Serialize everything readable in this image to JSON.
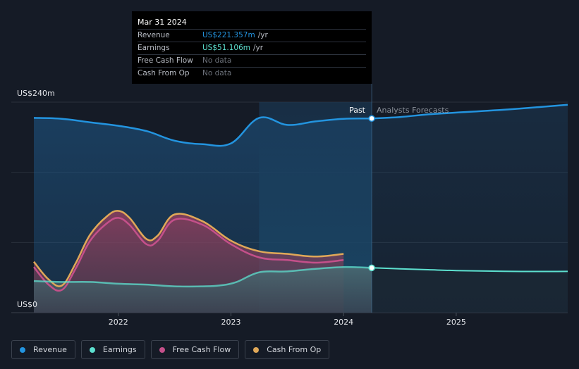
{
  "tooltip": {
    "date": "Mar 31 2024",
    "rows": [
      {
        "label": "Revenue",
        "value": "US$221.357m",
        "unit": "/yr",
        "color": "#2394df"
      },
      {
        "label": "Earnings",
        "value": "US$51.106m",
        "unit": "/yr",
        "color": "#5de0cf"
      },
      {
        "label": "Free Cash Flow",
        "value": "No data",
        "unit": "",
        "color": "#6b7079"
      },
      {
        "label": "Cash From Op",
        "value": "No data",
        "unit": "",
        "color": "#6b7079"
      }
    ]
  },
  "legend": [
    {
      "label": "Revenue",
      "color": "#2394df"
    },
    {
      "label": "Earnings",
      "color": "#5de0cf"
    },
    {
      "label": "Free Cash Flow",
      "color": "#c4508a"
    },
    {
      "label": "Cash From Op",
      "color": "#e0a858"
    }
  ],
  "chart_data": {
    "type": "area",
    "y_top_label": "US$240m",
    "y_bottom_label": "US$0",
    "ylim": [
      0,
      240
    ],
    "xlim": [
      2021.25,
      2025.99
    ],
    "x_ticks": [
      2022,
      2023,
      2024,
      2025
    ],
    "past_label": "Past",
    "forecast_label": "Analysts Forecasts",
    "forecast_start": 2024.25,
    "highlight_range": [
      2023.25,
      2024.25
    ],
    "series": [
      {
        "name": "Revenue",
        "color": "#2394df",
        "past": [
          [
            2021.25,
            222
          ],
          [
            2021.5,
            221
          ],
          [
            2021.75,
            217
          ],
          [
            2022.0,
            213
          ],
          [
            2022.25,
            207
          ],
          [
            2022.5,
            196
          ],
          [
            2022.75,
            192
          ],
          [
            2023.0,
            193
          ],
          [
            2023.25,
            222
          ],
          [
            2023.5,
            214
          ],
          [
            2023.75,
            218
          ],
          [
            2024.0,
            221
          ],
          [
            2024.25,
            221.357
          ]
        ],
        "forecast": [
          [
            2024.25,
            221.357
          ],
          [
            2024.5,
            223
          ],
          [
            2024.75,
            226
          ],
          [
            2025.0,
            228
          ],
          [
            2025.5,
            232
          ],
          [
            2025.99,
            237
          ]
        ]
      },
      {
        "name": "Earnings",
        "color": "#5de0cf",
        "past": [
          [
            2021.25,
            36
          ],
          [
            2021.5,
            35
          ],
          [
            2021.75,
            35
          ],
          [
            2022.0,
            33
          ],
          [
            2022.25,
            32
          ],
          [
            2022.5,
            30
          ],
          [
            2022.75,
            30
          ],
          [
            2022.9,
            31
          ],
          [
            2023.05,
            35
          ],
          [
            2023.25,
            46
          ],
          [
            2023.5,
            47
          ],
          [
            2023.75,
            50
          ],
          [
            2024.0,
            52
          ],
          [
            2024.25,
            51.106
          ]
        ],
        "forecast": [
          [
            2024.25,
            51.106
          ],
          [
            2024.5,
            50
          ],
          [
            2024.75,
            49
          ],
          [
            2025.0,
            48
          ],
          [
            2025.5,
            47
          ],
          [
            2025.99,
            47
          ]
        ]
      },
      {
        "name": "Free Cash Flow",
        "color": "#c4508a",
        "past": [
          [
            2021.25,
            52
          ],
          [
            2021.38,
            32
          ],
          [
            2021.5,
            26
          ],
          [
            2021.62,
            50
          ],
          [
            2021.75,
            82
          ],
          [
            2021.9,
            102
          ],
          [
            2022.0,
            108
          ],
          [
            2022.1,
            100
          ],
          [
            2022.25,
            78
          ],
          [
            2022.35,
            82
          ],
          [
            2022.5,
            106
          ],
          [
            2022.75,
            100
          ],
          [
            2023.0,
            78
          ],
          [
            2023.25,
            63
          ],
          [
            2023.5,
            60
          ],
          [
            2023.75,
            57
          ],
          [
            2024.0,
            60
          ]
        ]
      },
      {
        "name": "Cash From Op",
        "color": "#e0a858",
        "past": [
          [
            2021.25,
            58
          ],
          [
            2021.38,
            38
          ],
          [
            2021.5,
            31
          ],
          [
            2021.62,
            56
          ],
          [
            2021.75,
            89
          ],
          [
            2021.9,
            110
          ],
          [
            2022.0,
            116
          ],
          [
            2022.1,
            108
          ],
          [
            2022.25,
            84
          ],
          [
            2022.35,
            88
          ],
          [
            2022.5,
            112
          ],
          [
            2022.75,
            104
          ],
          [
            2023.0,
            82
          ],
          [
            2023.25,
            70
          ],
          [
            2023.5,
            67
          ],
          [
            2023.75,
            64
          ],
          [
            2024.0,
            67
          ]
        ]
      }
    ]
  }
}
